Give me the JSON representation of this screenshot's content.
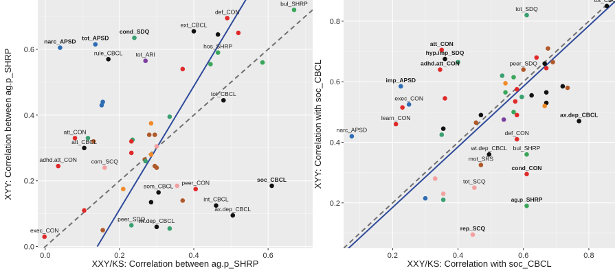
{
  "colors": {
    "panel_bg": "#ebebeb",
    "grid": "#ffffff",
    "fit_line": "#2e4a9a",
    "identity_line": "#707070"
  },
  "chart_data": [
    {
      "type": "scatter",
      "xlabel": "XXY/KS: Correlation between ag.p_SHRP",
      "ylabel": "XYY: Correlation between ag.p_SHRP",
      "xlim": [
        -0.02,
        0.72
      ],
      "ylim": [
        -0.005,
        0.75
      ],
      "xticks": [
        0.0,
        0.2,
        0.4,
        0.6
      ],
      "xtick_labels": [
        "0.0",
        "0.2",
        "0.4",
        "0.6"
      ],
      "yticks": [
        0.0,
        0.2,
        0.4,
        0.6
      ],
      "ytick_labels": [
        "0.0",
        "0.2",
        "0.4",
        "0.6"
      ],
      "grid": true,
      "lines": [
        {
          "kind": "fit",
          "x": [
            0.14,
            0.545
          ],
          "y": [
            0.0,
            0.76
          ]
        },
        {
          "kind": "identity",
          "x": [
            -0.02,
            0.72
          ],
          "y": [
            -0.02,
            0.72
          ]
        }
      ],
      "points": [
        {
          "x": 0.67,
          "y": 0.72,
          "color": "#3aa65a",
          "label": "bul_SHRP"
        },
        {
          "x": 0.49,
          "y": 0.695,
          "color": "#e02a2a",
          "label": "def_CON"
        },
        {
          "x": 0.52,
          "y": 0.65,
          "color": "#e02a2a"
        },
        {
          "x": 0.4,
          "y": 0.655,
          "color": "#111111",
          "label": "ext_CBCL"
        },
        {
          "x": 0.465,
          "y": 0.645,
          "color": "#111111"
        },
        {
          "x": 0.04,
          "y": 0.605,
          "color": "#2e6db5",
          "label": "narc_APSD",
          "bold": true
        },
        {
          "x": 0.135,
          "y": 0.615,
          "color": "#2e6db5",
          "label": "tot_APSD",
          "bold": true
        },
        {
          "x": 0.24,
          "y": 0.635,
          "color": "#3aa070",
          "label": "cond_SDQ",
          "bold": true
        },
        {
          "x": 0.17,
          "y": 0.57,
          "color": "#111111",
          "label": "rule_CBCL"
        },
        {
          "x": 0.27,
          "y": 0.565,
          "color": "#7b3fa0",
          "label": "tot_ARI"
        },
        {
          "x": 0.465,
          "y": 0.59,
          "color": "#3aa65a",
          "label": "hos_SHRP"
        },
        {
          "x": 0.445,
          "y": 0.555,
          "color": "#3aa65a"
        },
        {
          "x": 0.585,
          "y": 0.56,
          "color": "#3aa65a"
        },
        {
          "x": 0.37,
          "y": 0.54,
          "color": "#e02a2a"
        },
        {
          "x": 0.48,
          "y": 0.445,
          "color": "#111111",
          "label": "tot_CBCL"
        },
        {
          "x": 0.155,
          "y": 0.44,
          "color": "#2e6db5"
        },
        {
          "x": 0.152,
          "y": 0.43,
          "color": "#2e6db5"
        },
        {
          "x": 0.335,
          "y": 0.395,
          "color": "#3aa070"
        },
        {
          "x": 0.285,
          "y": 0.375,
          "color": "#f08a2a"
        },
        {
          "x": 0.28,
          "y": 0.34,
          "color": "#b05a2a"
        },
        {
          "x": 0.295,
          "y": 0.34,
          "color": "#b05a2a"
        },
        {
          "x": 0.235,
          "y": 0.325,
          "color": "#3aa070"
        },
        {
          "x": 0.232,
          "y": 0.32,
          "color": "#e02a2a"
        },
        {
          "x": 0.08,
          "y": 0.33,
          "color": "#e02a2a",
          "label": "att_CON"
        },
        {
          "x": 0.115,
          "y": 0.33,
          "color": "#3aa070"
        },
        {
          "x": 0.13,
          "y": 0.32,
          "color": "#b05a2a"
        },
        {
          "x": 0.105,
          "y": 0.3,
          "color": "#111111",
          "label": "att_CBCL"
        },
        {
          "x": 0.3,
          "y": 0.305,
          "color": "#f4a0a0"
        },
        {
          "x": 0.232,
          "y": 0.285,
          "color": "#e02a2a"
        },
        {
          "x": 0.285,
          "y": 0.28,
          "color": "#f08a2a"
        },
        {
          "x": 0.268,
          "y": 0.265,
          "color": "#b05a2a"
        },
        {
          "x": 0.27,
          "y": 0.26,
          "color": "#3aa070"
        },
        {
          "x": 0.295,
          "y": 0.245,
          "color": "#b05a2a"
        },
        {
          "x": 0.3,
          "y": 0.24,
          "color": "#b05a2a"
        },
        {
          "x": 0.035,
          "y": 0.245,
          "color": "#e02a2a",
          "label": "adhd.att_CON"
        },
        {
          "x": 0.16,
          "y": 0.24,
          "color": "#f4a0a0",
          "label": "com_SCQ"
        },
        {
          "x": 0.21,
          "y": 0.175,
          "color": "#f08a2a"
        },
        {
          "x": 0.305,
          "y": 0.165,
          "color": "#111111",
          "label": "som_CBCL"
        },
        {
          "x": 0.285,
          "y": 0.135,
          "color": "#111111"
        },
        {
          "x": 0.355,
          "y": 0.185,
          "color": "#f4a0a0"
        },
        {
          "x": 0.405,
          "y": 0.175,
          "color": "#e02a2a",
          "label": "peer_CON"
        },
        {
          "x": 0.61,
          "y": 0.185,
          "color": "#111111",
          "label": "soc_CBCL",
          "bold": true
        },
        {
          "x": 0.37,
          "y": 0.14,
          "color": "#b05a2a"
        },
        {
          "x": 0.46,
          "y": 0.125,
          "color": "#111111",
          "label": "int_CBCL"
        },
        {
          "x": 0.505,
          "y": 0.095,
          "color": "#111111",
          "label": "ax.dep_CBCL"
        },
        {
          "x": 0.105,
          "y": 0.11,
          "color": "#e02a2a"
        },
        {
          "x": 0.232,
          "y": 0.065,
          "color": "#3aa070",
          "label": "peer_SDQ"
        },
        {
          "x": 0.3,
          "y": 0.06,
          "color": "#111111",
          "label": "wt.dep_CBCL"
        },
        {
          "x": 0.335,
          "y": 0.055,
          "color": "#3aa070"
        },
        {
          "x": 0.155,
          "y": 0.05,
          "color": "#b05a2a"
        },
        {
          "x": -0.002,
          "y": 0.03,
          "color": "#e02a2a",
          "label": "exec_CON"
        }
      ]
    },
    {
      "type": "scatter",
      "xlabel": "XXY/KS: Correlation with soc_CBCL",
      "ylabel": "XYY: Correlation with soc_CBCL",
      "xlim": [
        0.05,
        0.88
      ],
      "ylim": [
        0.05,
        0.87
      ],
      "xticks": [
        0.2,
        0.4,
        0.6,
        0.8
      ],
      "xtick_labels": [
        "0.2",
        "0.4",
        "0.6",
        "0.8"
      ],
      "yticks": [
        0.2,
        0.4,
        0.6,
        0.8
      ],
      "ytick_labels": [
        "0.2",
        "0.4",
        "0.6",
        "0.8"
      ],
      "grid": true,
      "lines": [
        {
          "kind": "identity",
          "x": [
            0.05,
            0.88
          ],
          "y": [
            0.05,
            0.88
          ]
        },
        {
          "kind": "fit",
          "x": [
            0.05,
            0.88
          ],
          "y": [
            0.035,
            0.865
          ]
        }
      ],
      "points": [
        {
          "x": 0.855,
          "y": 0.85,
          "color": "#111111",
          "label": "tot_CBCL"
        },
        {
          "x": 0.61,
          "y": 0.82,
          "color": "#3aa070",
          "label": "tot_SDQ"
        },
        {
          "x": 0.35,
          "y": 0.705,
          "color": "#e02a2a",
          "label": "att_CON",
          "bold": true
        },
        {
          "x": 0.36,
          "y": 0.675,
          "color": "#111111",
          "label": "hyp.imp_SDQ",
          "bold": true
        },
        {
          "x": 0.345,
          "y": 0.64,
          "color": "#e02a2a",
          "label": "adhd.att_CON",
          "bold": true
        },
        {
          "x": 0.4,
          "y": 0.665,
          "color": "#3aa070"
        },
        {
          "x": 0.6,
          "y": 0.64,
          "color": "#b05a2a",
          "label": "peer_SDQ"
        },
        {
          "x": 0.64,
          "y": 0.68,
          "color": "#e02a2a"
        },
        {
          "x": 0.665,
          "y": 0.66,
          "color": "#111111"
        },
        {
          "x": 0.675,
          "y": 0.71,
          "color": "#b05a2a"
        },
        {
          "x": 0.69,
          "y": 0.665,
          "color": "#b05a2a"
        },
        {
          "x": 0.67,
          "y": 0.645,
          "color": "#e02a2a"
        },
        {
          "x": 0.535,
          "y": 0.62,
          "color": "#3aa070"
        },
        {
          "x": 0.545,
          "y": 0.595,
          "color": "#f08a2a"
        },
        {
          "x": 0.57,
          "y": 0.615,
          "color": "#3aa65a"
        },
        {
          "x": 0.545,
          "y": 0.565,
          "color": "#3aa65a"
        },
        {
          "x": 0.58,
          "y": 0.575,
          "color": "#e02a2a"
        },
        {
          "x": 0.225,
          "y": 0.585,
          "color": "#2e6db5",
          "label": "imp_APSD",
          "bold": true
        },
        {
          "x": 0.25,
          "y": 0.525,
          "color": "#2e6db5",
          "label": "exec_CON"
        },
        {
          "x": 0.23,
          "y": 0.515,
          "color": "#e02a2a"
        },
        {
          "x": 0.21,
          "y": 0.46,
          "color": "#e02a2a",
          "label": "learn_CON"
        },
        {
          "x": 0.72,
          "y": 0.585,
          "color": "#111111"
        },
        {
          "x": 0.735,
          "y": 0.58,
          "color": "#b05a2a"
        },
        {
          "x": 0.67,
          "y": 0.565,
          "color": "#111111"
        },
        {
          "x": 0.625,
          "y": 0.555,
          "color": "#111111"
        },
        {
          "x": 0.595,
          "y": 0.55,
          "color": "#3aa070"
        },
        {
          "x": 0.67,
          "y": 0.53,
          "color": "#111111"
        },
        {
          "x": 0.665,
          "y": 0.52,
          "color": "#f08a2a"
        },
        {
          "x": 0.575,
          "y": 0.535,
          "color": "#e02a2a"
        },
        {
          "x": 0.57,
          "y": 0.5,
          "color": "#3aa65a"
        },
        {
          "x": 0.58,
          "y": 0.49,
          "color": "#e02a2a"
        },
        {
          "x": 0.77,
          "y": 0.47,
          "color": "#111111",
          "label": "ax.dep_CBCL",
          "bold": true
        },
        {
          "x": 0.54,
          "y": 0.475,
          "color": "#7b3fa0"
        },
        {
          "x": 0.47,
          "y": 0.49,
          "color": "#111111"
        },
        {
          "x": 0.455,
          "y": 0.465,
          "color": "#b05a2a"
        },
        {
          "x": 0.36,
          "y": 0.545,
          "color": "#e02a2a"
        },
        {
          "x": 0.355,
          "y": 0.445,
          "color": "#111111"
        },
        {
          "x": 0.35,
          "y": 0.425,
          "color": "#3aa070"
        },
        {
          "x": 0.075,
          "y": 0.42,
          "color": "#2e6db5",
          "label": "narc_APSD"
        },
        {
          "x": 0.58,
          "y": 0.41,
          "color": "#e02a2a",
          "label": "def_CON"
        },
        {
          "x": 0.61,
          "y": 0.36,
          "color": "#3aa65a",
          "label": "bul_SHRP"
        },
        {
          "x": 0.495,
          "y": 0.36,
          "color": "#111111",
          "label": "wt.dep_CBCL"
        },
        {
          "x": 0.47,
          "y": 0.325,
          "color": "#b05a2a",
          "label": "mot_SRS"
        },
        {
          "x": 0.61,
          "y": 0.295,
          "color": "#e02a2a",
          "label": "cond_CON",
          "bold": true
        },
        {
          "x": 0.33,
          "y": 0.28,
          "color": "#f4a0a0"
        },
        {
          "x": 0.355,
          "y": 0.23,
          "color": "#f4a0a0"
        },
        {
          "x": 0.45,
          "y": 0.25,
          "color": "#f4a0a0",
          "label": "tot_SCQ"
        },
        {
          "x": 0.3,
          "y": 0.215,
          "color": "#2e6db5"
        },
        {
          "x": 0.355,
          "y": 0.21,
          "color": "#3aa070"
        },
        {
          "x": 0.61,
          "y": 0.19,
          "color": "#3aa65a",
          "label": "ag.p_SHRP",
          "bold": true
        },
        {
          "x": 0.445,
          "y": 0.095,
          "color": "#f4a0a0",
          "label": "rep_SCQ",
          "bold": true
        }
      ]
    }
  ]
}
